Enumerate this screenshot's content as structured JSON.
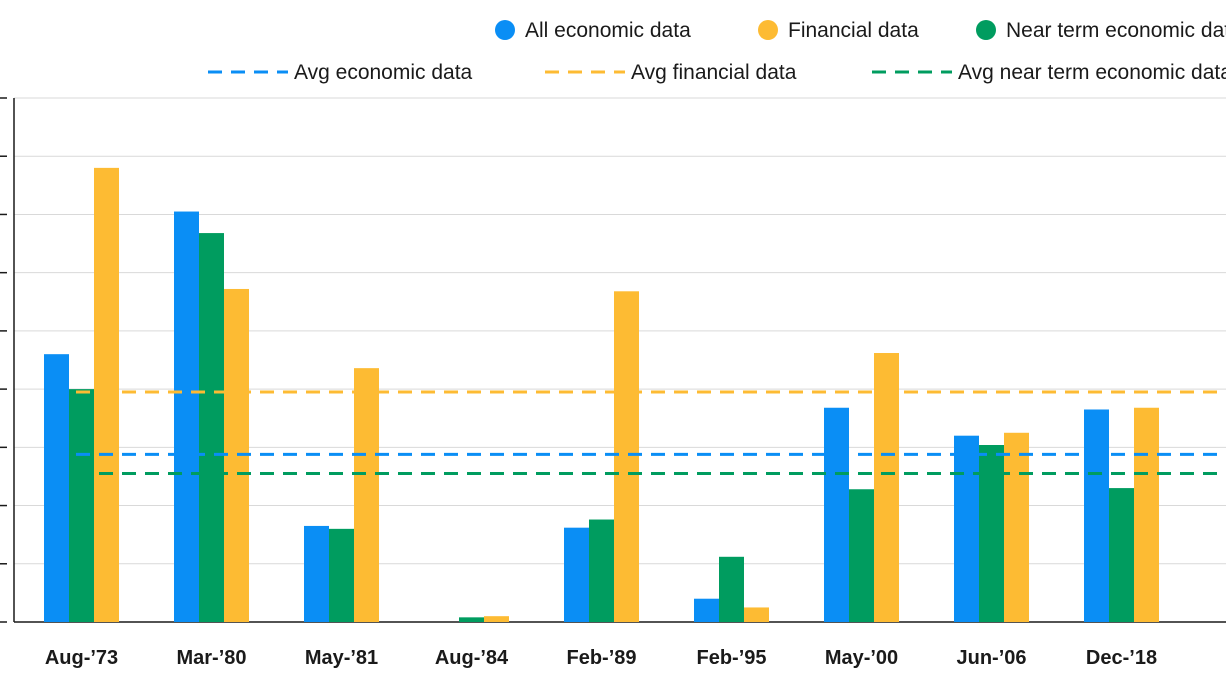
{
  "chart_data": {
    "type": "bar",
    "title": "",
    "xlabel": "",
    "ylabel": "",
    "categories": [
      "Aug-’73",
      "Mar-’80",
      "May-’81",
      "Aug-’84",
      "Feb-’89",
      "Feb-’95",
      "May-’00",
      "Jun-’06",
      "Dec-’18"
    ],
    "series": [
      {
        "name": "All economic data",
        "color": "#0a8ef5",
        "values": [
          4.6,
          7.05,
          1.65,
          0,
          1.62,
          0.4,
          3.68,
          3.2,
          3.65
        ]
      },
      {
        "name": "Financial data",
        "color": "#fdbb33",
        "values": [
          7.8,
          5.72,
          4.36,
          0.1,
          5.68,
          0.25,
          4.62,
          3.25,
          3.68
        ]
      },
      {
        "name": "Near term economic data",
        "color": "#009c5f",
        "values": [
          4.0,
          6.68,
          1.6,
          0.08,
          1.76,
          1.12,
          2.28,
          3.04,
          2.3
        ]
      }
    ],
    "reference_lines": [
      {
        "name": "Avg economic data",
        "color": "#0a8ef5",
        "value": 2.88
      },
      {
        "name": "Avg financial data",
        "color": "#fdbb33",
        "value": 3.95
      },
      {
        "name": "Avg near term economic data",
        "color": "#009c5f",
        "value": 2.55
      }
    ],
    "ylim": [
      0,
      9
    ],
    "grid": true,
    "legend_position": "top-right"
  }
}
